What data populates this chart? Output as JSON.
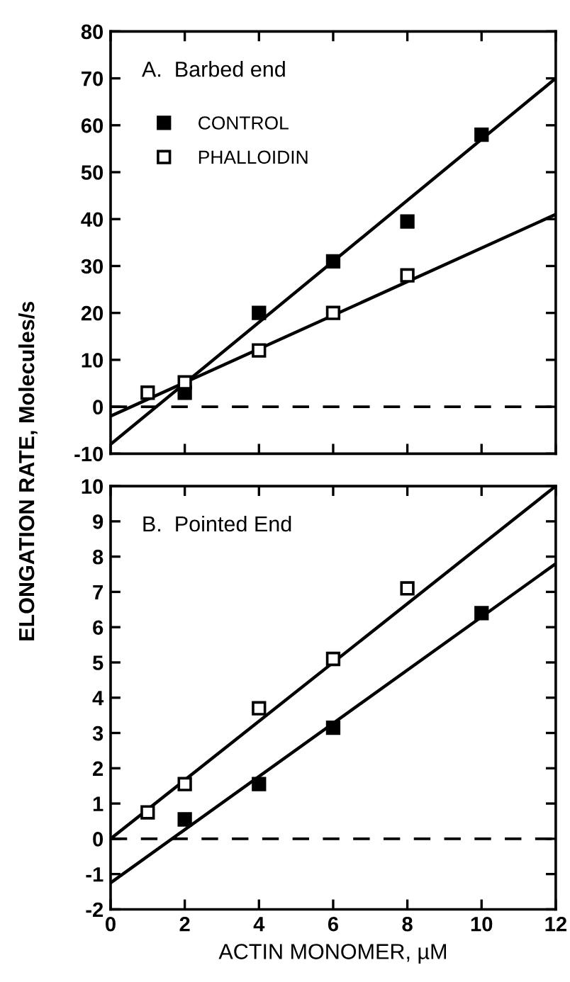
{
  "chart_data": [
    {
      "type": "scatter",
      "title": "A.  Barbed end",
      "ylabel": "ELONGATION RATE, Molecules/s",
      "xlim": [
        0,
        12
      ],
      "xticks": [
        0,
        2,
        4,
        6,
        8,
        10,
        12
      ],
      "ylim": [
        -10,
        80
      ],
      "yticks": [
        -10,
        0,
        10,
        20,
        30,
        40,
        50,
        60,
        70,
        80
      ],
      "tick_labels": "y",
      "legend": "top left",
      "ref_lines": [
        {
          "axis": "y",
          "value": 0,
          "line_style": "dashed",
          "color": "#000000"
        }
      ],
      "series": [
        {
          "name": "CONTROL",
          "color": "#000000",
          "marker": "square",
          "x": [
            2,
            4,
            6,
            8,
            10
          ],
          "values": [
            3,
            20,
            31,
            39.5,
            58
          ]
        },
        {
          "name": "PHALLOIDIN",
          "color": "#ffffff",
          "marker": "square",
          "x": [
            1,
            2,
            4,
            6,
            8
          ],
          "values": [
            3,
            5.2,
            12,
            20,
            28
          ]
        },
        {
          "type": "line",
          "color": "#000000",
          "marker": "none",
          "x": [
            0,
            12
          ],
          "values": [
            -8,
            70
          ]
        },
        {
          "type": "line",
          "color": "#000000",
          "marker": "none",
          "x": [
            0,
            12
          ],
          "values": [
            -2,
            41
          ]
        }
      ]
    },
    {
      "type": "scatter",
      "title": "B.  Pointed End",
      "xlabel": "ACTIN MONOMER, µM",
      "xlim": [
        0,
        12
      ],
      "xticks": [
        0,
        2,
        4,
        6,
        8,
        10,
        12
      ],
      "ylim": [
        -2,
        10
      ],
      "yticks": [
        -2,
        -1,
        0,
        1,
        2,
        3,
        4,
        5,
        6,
        7,
        8,
        9,
        10
      ],
      "ref_lines": [
        {
          "axis": "y",
          "value": 0,
          "line_style": "dashed",
          "color": "#000000"
        }
      ],
      "series": [
        {
          "color": "#000000",
          "marker": "square",
          "x": [
            2,
            4,
            6,
            10
          ],
          "values": [
            0.55,
            1.55,
            3.15,
            6.4
          ]
        },
        {
          "color": "#ffffff",
          "marker": "square",
          "x": [
            1,
            2,
            4,
            6,
            8
          ],
          "values": [
            0.75,
            1.55,
            3.7,
            5.1,
            7.1
          ]
        },
        {
          "type": "line",
          "color": "#000000",
          "marker": "none",
          "x": [
            0,
            12
          ],
          "values": [
            0,
            10
          ]
        },
        {
          "type": "line",
          "color": "#000000",
          "marker": "none",
          "x": [
            0,
            12
          ],
          "values": [
            -1.25,
            7.8
          ]
        }
      ]
    }
  ]
}
